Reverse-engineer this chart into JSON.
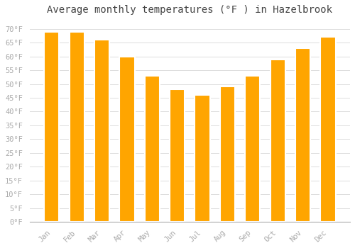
{
  "title": "Average monthly temperatures (°F ) in Hazelbrook",
  "months": [
    "Jan",
    "Feb",
    "Mar",
    "Apr",
    "May",
    "Jun",
    "Jul",
    "Aug",
    "Sep",
    "Oct",
    "Nov",
    "Dec"
  ],
  "values": [
    69,
    69,
    66,
    60,
    53,
    48,
    46,
    49,
    53,
    59,
    63,
    67
  ],
  "bar_color": "#FFA500",
  "bar_edge_color": "#FFFFFF",
  "background_color": "#FFFFFF",
  "grid_color": "#DDDDDD",
  "ylim": [
    0,
    73
  ],
  "yticks": [
    0,
    5,
    10,
    15,
    20,
    25,
    30,
    35,
    40,
    45,
    50,
    55,
    60,
    65,
    70
  ],
  "title_fontsize": 10,
  "tick_fontsize": 7.5,
  "tick_color": "#AAAAAA",
  "font_family": "monospace",
  "bar_width": 0.6
}
